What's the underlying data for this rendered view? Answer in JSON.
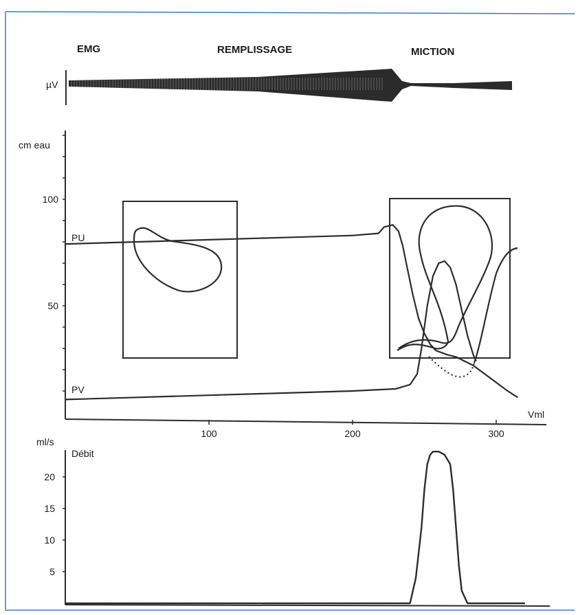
{
  "chart_data": [
    {
      "type": "area",
      "panel": "emg",
      "labels": {
        "section_emg": "EMG",
        "section_fill": "REMPLISSAGE",
        "section_void": "MICTION",
        "unit": "µV"
      }
    },
    {
      "type": "line",
      "panel": "pressure",
      "ylabel": "cm eau",
      "xlabel": "Vml",
      "xlim": [
        0,
        320
      ],
      "ylim": [
        0,
        130
      ],
      "xticks": [
        100,
        200,
        300
      ],
      "yticks": [
        50,
        100
      ],
      "series": [
        {
          "name": "PU",
          "x": [
            0,
            50,
            100,
            150,
            200,
            218,
            222,
            228,
            232,
            235,
            238,
            242,
            246,
            250,
            254,
            258,
            262,
            266,
            272,
            278,
            284,
            290,
            296,
            302,
            308,
            315
          ],
          "y": [
            79,
            80,
            81,
            82,
            83,
            84,
            87,
            88,
            85,
            78,
            68,
            55,
            44,
            37,
            32,
            29,
            28,
            27,
            26,
            24,
            22,
            19,
            16,
            13,
            10,
            7
          ]
        },
        {
          "name": "PV",
          "x": [
            0,
            50,
            100,
            150,
            200,
            230,
            240,
            245,
            248,
            252,
            256,
            260,
            264,
            268,
            272,
            276,
            280,
            284,
            286
          ],
          "y": [
            6,
            7,
            8,
            9,
            10,
            11,
            13,
            18,
            30,
            50,
            64,
            70,
            71,
            68,
            60,
            48,
            36,
            27,
            24
          ]
        }
      ],
      "annotations": [
        "PU",
        "PV"
      ]
    },
    {
      "type": "line",
      "panel": "flow",
      "ylabel": "ml/s",
      "title": "Débit",
      "yticks": [
        5,
        10,
        15,
        20
      ],
      "ylim": [
        0,
        25
      ],
      "xlim": [
        0,
        320
      ],
      "series": [
        {
          "x": [
            0,
            240,
            244,
            248,
            250,
            252,
            254,
            256,
            260,
            264,
            268,
            270,
            272,
            274,
            276,
            280,
            320
          ],
          "y": [
            0,
            0,
            4,
            12,
            18,
            22,
            23.5,
            24,
            24,
            23.5,
            22,
            18,
            12,
            6,
            2,
            0,
            0
          ]
        }
      ]
    }
  ]
}
